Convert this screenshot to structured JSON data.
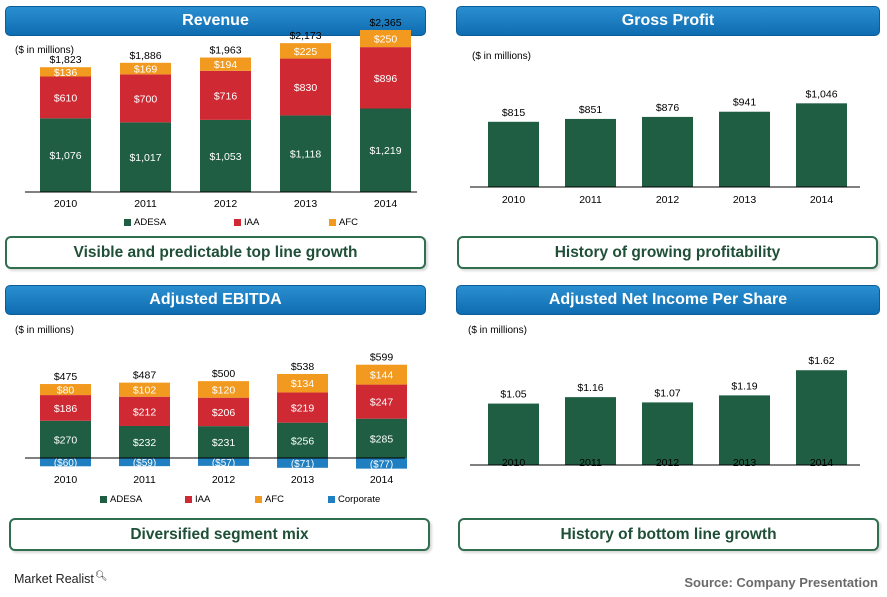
{
  "panels": {
    "revenue": {
      "title": "Revenue",
      "units": "($ in millions)",
      "tagline": "Visible and predictable top line growth"
    },
    "gross_profit": {
      "title": "Gross Profit",
      "units": "($ in millions)",
      "tagline": "History of growing profitability"
    },
    "ebitda": {
      "title": "Adjusted EBITDA",
      "units": "($ in millions)",
      "tagline": "Diversified segment mix"
    },
    "net_income": {
      "title": "Adjusted Net Income Per Share",
      "units": "($ in millions)",
      "tagline": "History of bottom line growth"
    }
  },
  "footer": {
    "brand": "Market Realist",
    "source": "Source: Company Presentation"
  },
  "colors": {
    "adesa": "#1f5e43",
    "iaa": "#cf2a34",
    "afc": "#f29a1f",
    "corporate": "#1f7fc1",
    "header": "#1473b8"
  },
  "chart_data": [
    {
      "id": "revenue",
      "type": "bar",
      "stacked": true,
      "title": "Revenue",
      "categories": [
        "2010",
        "2011",
        "2012",
        "2013",
        "2014"
      ],
      "series": [
        {
          "name": "ADESA",
          "key": "adesa",
          "values": [
            1076,
            1017,
            1053,
            1118,
            1219
          ],
          "labels": [
            "$1,076",
            "$1,017",
            "$1,053",
            "$1,118",
            "$1,219"
          ]
        },
        {
          "name": "IAA",
          "key": "iaa",
          "values": [
            610,
            700,
            716,
            830,
            896
          ],
          "labels": [
            "$610",
            "$700",
            "$716",
            "$830",
            "$896"
          ]
        },
        {
          "name": "AFC",
          "key": "afc",
          "values": [
            136,
            169,
            194,
            225,
            250
          ],
          "labels": [
            "$136",
            "$169",
            "$194",
            "$225",
            "$250"
          ]
        }
      ],
      "totals": [
        "$1,823",
        "$1,886",
        "$1,963",
        "$2,173",
        "$2,365"
      ],
      "ylim": [
        0,
        2400
      ]
    },
    {
      "id": "gross_profit",
      "type": "bar",
      "title": "Gross Profit",
      "categories": [
        "2010",
        "2011",
        "2012",
        "2013",
        "2014"
      ],
      "values": [
        815,
        851,
        876,
        941,
        1046
      ],
      "labels": [
        "$815",
        "$851",
        "$876",
        "$941",
        "$1,046"
      ],
      "ylim": [
        0,
        1300
      ]
    },
    {
      "id": "ebitda",
      "type": "bar",
      "stacked": true,
      "title": "Adjusted EBITDA",
      "categories": [
        "2010",
        "2011",
        "2012",
        "2013",
        "2014"
      ],
      "series": [
        {
          "name": "ADESA",
          "key": "adesa",
          "values": [
            270,
            232,
            231,
            256,
            285
          ],
          "labels": [
            "$270",
            "$232",
            "$231",
            "$256",
            "$285"
          ]
        },
        {
          "name": "IAA",
          "key": "iaa",
          "values": [
            186,
            212,
            206,
            219,
            247
          ],
          "labels": [
            "$186",
            "$212",
            "$206",
            "$219",
            "$247"
          ]
        },
        {
          "name": "AFC",
          "key": "afc",
          "values": [
            80,
            102,
            120,
            134,
            144
          ],
          "labels": [
            "$80",
            "$102",
            "$120",
            "$134",
            "$144"
          ]
        },
        {
          "name": "Corporate",
          "key": "corporate",
          "values": [
            -60,
            -59,
            -57,
            -71,
            -77
          ],
          "labels": [
            "($60)",
            "($59)",
            "($57)",
            "($71)",
            "($77)"
          ]
        }
      ],
      "totals": [
        "$475",
        "$487",
        "$500",
        "$538",
        "$599"
      ],
      "ylim": [
        -80,
        710
      ]
    },
    {
      "id": "net_income",
      "type": "bar",
      "title": "Adjusted Net Income Per Share",
      "categories": [
        "2010",
        "2011",
        "2012",
        "2013",
        "2014"
      ],
      "values": [
        1.05,
        1.16,
        1.07,
        1.19,
        1.62
      ],
      "labels": [
        "$1.05",
        "$1.16",
        "$1.07",
        "$1.19",
        "$1.62"
      ],
      "ylim": [
        0,
        1.95
      ]
    }
  ]
}
